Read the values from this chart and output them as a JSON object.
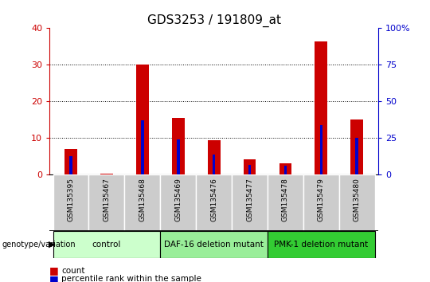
{
  "title": "GDS3253 / 191809_at",
  "samples": [
    "GSM135395",
    "GSM135467",
    "GSM135468",
    "GSM135469",
    "GSM135476",
    "GSM135477",
    "GSM135478",
    "GSM135479",
    "GSM135480"
  ],
  "counts": [
    7,
    0.3,
    30,
    15.5,
    9.5,
    4.2,
    3.2,
    36.5,
    15
  ],
  "percentiles": [
    13,
    0.5,
    37,
    24,
    14,
    7,
    6,
    34,
    25
  ],
  "groups": [
    {
      "label": "control",
      "start": 0,
      "end": 3,
      "color": "#ccffcc"
    },
    {
      "label": "DAF-16 deletion mutant",
      "start": 3,
      "end": 6,
      "color": "#99ee99"
    },
    {
      "label": "PMK-1 deletion mutant",
      "start": 6,
      "end": 9,
      "color": "#33cc33"
    }
  ],
  "ylim_left": [
    0,
    40
  ],
  "ylim_right": [
    0,
    100
  ],
  "yticks_left": [
    0,
    10,
    20,
    30,
    40
  ],
  "yticks_right": [
    0,
    25,
    50,
    75,
    100
  ],
  "ytick_labels_right": [
    "0",
    "25",
    "50",
    "75",
    "100%"
  ],
  "bar_color": "#cc0000",
  "percentile_color": "#0000cc",
  "title_fontsize": 11,
  "axis_color_left": "#cc0000",
  "axis_color_right": "#0000cc",
  "sample_bg_color": "#cccccc",
  "bar_width": 0.35,
  "pct_bar_width": 0.08
}
